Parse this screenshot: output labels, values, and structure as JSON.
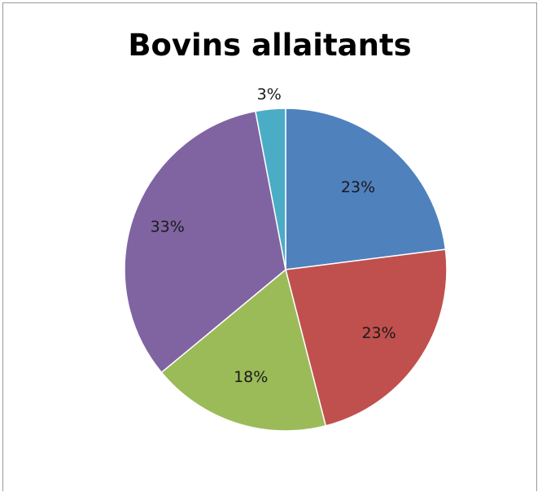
{
  "chart_data": {
    "type": "pie",
    "title": "Bovins allaitants",
    "start_angle_deg": 0,
    "direction": "clockwise",
    "legend": "none",
    "slices": [
      {
        "value": 23,
        "label": "23%",
        "color": "#4f81bd"
      },
      {
        "value": 23,
        "label": "23%",
        "color": "#c0504d"
      },
      {
        "value": 18,
        "label": "18%",
        "color": "#9bbb59"
      },
      {
        "value": 33,
        "label": "33%",
        "color": "#8064a2"
      },
      {
        "value": 3,
        "label": "3%",
        "color": "#4bacc6"
      }
    ]
  }
}
